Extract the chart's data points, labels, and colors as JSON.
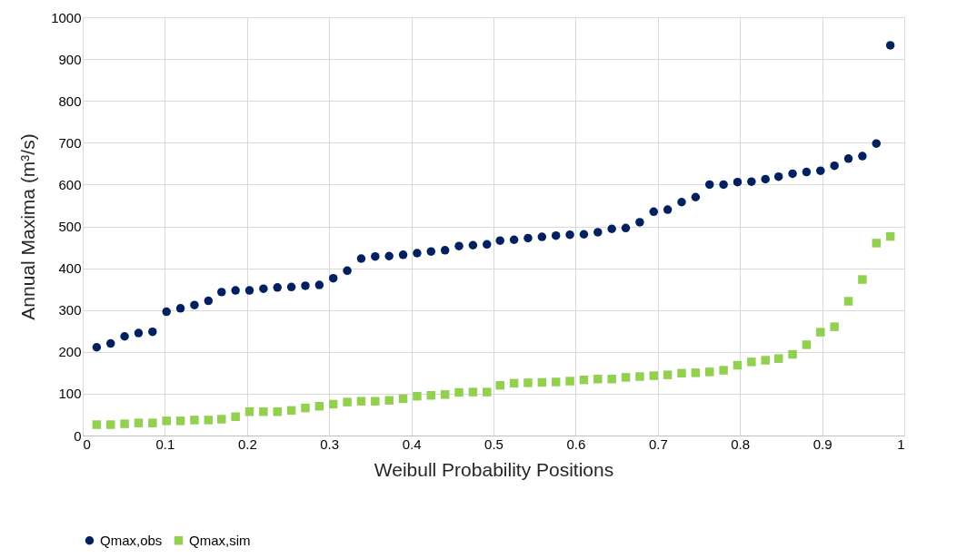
{
  "chart_data": {
    "type": "scatter",
    "xlabel": "Weibull Probability Positions",
    "ylabel": "Annual Maxima (m³/s)",
    "x": [
      0.017,
      0.034,
      0.051,
      0.068,
      0.085,
      0.102,
      0.119,
      0.136,
      0.153,
      0.169,
      0.186,
      0.203,
      0.22,
      0.237,
      0.254,
      0.271,
      0.288,
      0.305,
      0.322,
      0.339,
      0.356,
      0.373,
      0.39,
      0.407,
      0.424,
      0.441,
      0.458,
      0.475,
      0.492,
      0.508,
      0.525,
      0.542,
      0.559,
      0.576,
      0.593,
      0.61,
      0.627,
      0.644,
      0.661,
      0.678,
      0.695,
      0.712,
      0.729,
      0.746,
      0.763,
      0.78,
      0.797,
      0.814,
      0.831,
      0.847,
      0.864,
      0.881,
      0.898,
      0.915,
      0.932,
      0.949,
      0.966,
      0.983
    ],
    "series": [
      {
        "name": "Qmax,obs",
        "color": "#002060",
        "marker": "circle",
        "values": [
          211,
          220,
          237,
          245,
          248,
          296,
          304,
          312,
          322,
          343,
          347,
          347,
          351,
          354,
          355,
          358,
          360,
          376,
          394,
          423,
          428,
          429,
          432,
          436,
          440,
          443,
          453,
          455,
          457,
          466,
          468,
          472,
          475,
          478,
          480,
          481,
          486,
          494,
          496,
          510,
          535,
          540,
          558,
          570,
          600,
          600,
          606,
          607,
          613,
          619,
          626,
          630,
          633,
          645,
          662,
          668,
          698,
          933
        ]
      },
      {
        "name": "Qmax,sim",
        "color": "#92d050",
        "marker": "square",
        "values": [
          26,
          26,
          28,
          30,
          30,
          35,
          35,
          37,
          37,
          39,
          45,
          57,
          57,
          57,
          60,
          66,
          70,
          75,
          80,
          82,
          82,
          84,
          88,
          94,
          96,
          98,
          103,
          104,
          104,
          120,
          125,
          126,
          127,
          128,
          130,
          133,
          135,
          135,
          139,
          141,
          143,
          145,
          149,
          150,
          152,
          156,
          168,
          176,
          180,
          184,
          194,
          217,
          247,
          260,
          321,
          373,
          460,
          476
        ]
      }
    ],
    "xlim": [
      0,
      1
    ],
    "xticks": [
      0,
      0.1,
      0.2,
      0.3,
      0.4,
      0.5,
      0.6,
      0.7,
      0.8,
      0.9,
      1
    ],
    "ylim": [
      0,
      1000
    ],
    "yticks": [
      0,
      100,
      200,
      300,
      400,
      500,
      600,
      700,
      800,
      900,
      1000
    ],
    "grid": true,
    "legend": "bottom"
  }
}
